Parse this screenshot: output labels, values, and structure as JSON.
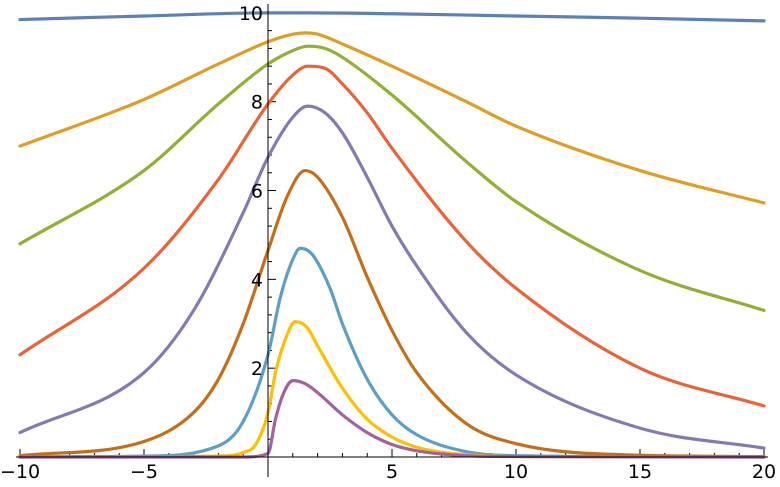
{
  "chart_data": {
    "type": "line",
    "title": "",
    "xlabel": "",
    "ylabel": "",
    "xlim": [
      -10,
      20
    ],
    "ylim": [
      0,
      10.2
    ],
    "grid": false,
    "x_major_ticks": [
      -10,
      -5,
      5,
      10,
      15,
      20
    ],
    "x_tick_labels": [
      "−10",
      "−5",
      "5",
      "10",
      "15",
      "20"
    ],
    "y_major_ticks": [
      2,
      4,
      6,
      8,
      10
    ],
    "y_tick_labels": [
      "2",
      "4",
      "6",
      "8",
      "10"
    ],
    "x_minor_step": 1,
    "y_minor_step": 0.4,
    "series": [
      {
        "color": "#5E81B5",
        "x": [
          -10,
          -5,
          0,
          1.5,
          5,
          10,
          15,
          20
        ],
        "y": [
          9.85,
          9.93,
          10.0,
          10.0,
          9.98,
          9.93,
          9.88,
          9.82
        ]
      },
      {
        "color": "#E19C24",
        "x": [
          -10,
          -5,
          -2,
          0,
          1,
          1.5,
          2,
          3,
          5,
          8,
          10,
          15,
          20
        ],
        "y": [
          7.0,
          8.05,
          8.85,
          9.35,
          9.52,
          9.55,
          9.52,
          9.3,
          8.8,
          8.0,
          7.45,
          6.45,
          5.72
        ]
      },
      {
        "color": "#8FB032",
        "x": [
          -10,
          -5,
          -2,
          0,
          1,
          1.6,
          2.3,
          3,
          5,
          8,
          10,
          15,
          20
        ],
        "y": [
          4.8,
          6.45,
          7.95,
          8.85,
          9.15,
          9.25,
          9.2,
          9.0,
          8.15,
          6.65,
          5.75,
          4.2,
          3.3
        ]
      },
      {
        "color": "#EB6235",
        "x": [
          -10,
          -5,
          -2,
          0,
          1,
          1.6,
          2.3,
          3,
          4,
          5,
          8,
          10,
          15,
          20
        ],
        "y": [
          2.3,
          4.25,
          6.25,
          7.95,
          8.6,
          8.8,
          8.75,
          8.4,
          7.75,
          6.95,
          4.85,
          3.8,
          2.0,
          1.15
        ]
      },
      {
        "color": "#8778B3",
        "x": [
          -10,
          -5,
          -3,
          -1,
          0,
          1,
          1.6,
          2.3,
          3,
          4,
          5,
          6,
          8,
          10,
          15,
          20
        ],
        "y": [
          0.55,
          1.9,
          3.3,
          5.5,
          6.75,
          7.65,
          7.9,
          7.75,
          7.3,
          6.3,
          5.2,
          4.3,
          2.8,
          1.85,
          0.65,
          0.2
        ]
      },
      {
        "color": "#C56E1A",
        "x": [
          -10,
          -5,
          -3,
          -2,
          -1,
          0,
          0.8,
          1.5,
          2,
          3,
          4,
          5,
          6,
          8,
          10,
          15,
          20
        ],
        "y": [
          0.03,
          0.35,
          1.0,
          1.75,
          3.0,
          4.65,
          5.9,
          6.45,
          6.3,
          5.4,
          4.05,
          2.85,
          1.9,
          0.75,
          0.3,
          0.04,
          0.01
        ]
      },
      {
        "color": "#5D9EC7",
        "x": [
          -10,
          -5,
          -2,
          -1,
          0,
          0.5,
          1,
          1.3,
          1.8,
          2.5,
          3,
          4,
          5,
          6,
          8,
          10,
          20
        ],
        "y": [
          0.0,
          0.02,
          0.25,
          0.8,
          2.3,
          3.6,
          4.45,
          4.7,
          4.55,
          3.8,
          3.0,
          1.75,
          0.95,
          0.5,
          0.12,
          0.03,
          0.0
        ]
      },
      {
        "color": "#FFBF00",
        "x": [
          -10,
          -2,
          -1,
          -0.5,
          0,
          0.3,
          0.7,
          1.1,
          1.6,
          2,
          3,
          4,
          5,
          6,
          8,
          10,
          20
        ],
        "y": [
          0.0,
          0.02,
          0.1,
          0.28,
          1.0,
          1.9,
          2.65,
          3.05,
          2.9,
          2.5,
          1.55,
          0.85,
          0.45,
          0.22,
          0.05,
          0.01,
          0.0
        ]
      },
      {
        "color": "#A5609D",
        "x": [
          -10,
          -1,
          0,
          0.3,
          0.6,
          1,
          1.5,
          2,
          3,
          4,
          5,
          6,
          8,
          10,
          20
        ],
        "y": [
          0.0,
          0.0,
          0.08,
          0.85,
          1.4,
          1.72,
          1.65,
          1.45,
          0.95,
          0.55,
          0.28,
          0.14,
          0.03,
          0.01,
          0.0
        ]
      }
    ]
  }
}
